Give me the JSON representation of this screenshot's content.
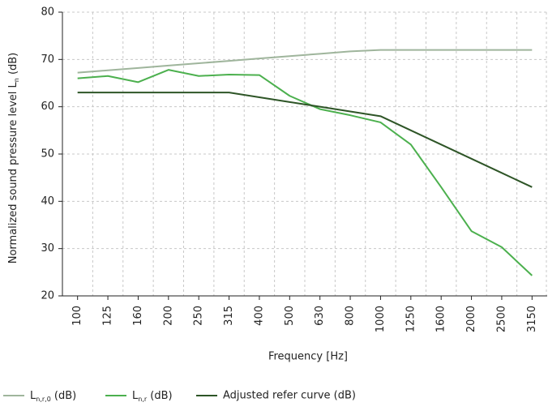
{
  "chart_data": {
    "type": "line",
    "ylabel": "Normalized sound pressure level Ln (dB)",
    "xlabel": "Frequency [Hz]",
    "categories": [
      "100",
      "125",
      "160",
      "200",
      "250",
      "315",
      "400",
      "500",
      "630",
      "800",
      "1000",
      "1250",
      "1600",
      "2000",
      "2500",
      "3150"
    ],
    "series": [
      {
        "name": "Ln,r,0 (dB)",
        "color": "#9fb59c",
        "values": [
          67.2,
          67.7,
          68.2,
          68.7,
          69.2,
          69.7,
          70.2,
          70.7,
          71.2,
          71.7,
          72,
          72,
          72,
          72,
          72,
          72
        ]
      },
      {
        "name": "Ln,r (dB)",
        "color": "#4cb04e",
        "values": [
          66,
          66.5,
          65.2,
          67.8,
          66.5,
          66.8,
          66.7,
          62.3,
          59.5,
          58.2,
          56.7,
          52,
          43,
          33.7,
          30.3,
          24.3
        ]
      },
      {
        "name": "Adjusted refer curve (dB)",
        "color": "#2e5527",
        "values": [
          63,
          63,
          63,
          63,
          63,
          63,
          62,
          61,
          60,
          59,
          58,
          55,
          52,
          49,
          46,
          43
        ]
      }
    ],
    "ylim": [
      20,
      80
    ],
    "yticks": [
      20,
      30,
      40,
      50,
      60,
      70,
      80
    ],
    "grid": true,
    "legend": "bottom"
  }
}
